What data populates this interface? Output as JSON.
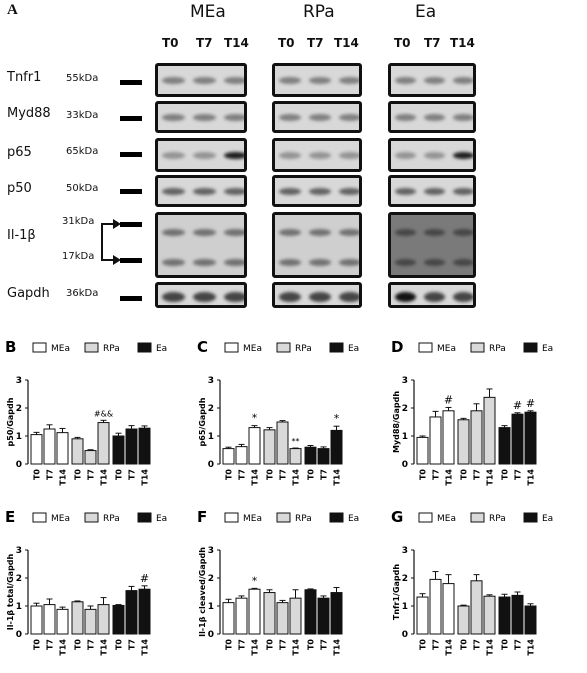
{
  "figure_label": "A",
  "blot": {
    "groups": [
      {
        "name": "MEa",
        "timepoints": [
          "T0",
          "T7",
          "T14"
        ]
      },
      {
        "name": "RPa",
        "timepoints": [
          "T0",
          "T7",
          "T14"
        ]
      },
      {
        "name": "Ea",
        "timepoints": [
          "T0",
          "T7",
          "T14"
        ]
      }
    ],
    "proteins": [
      {
        "name": "Tnfr1",
        "kda": "55kDa"
      },
      {
        "name": "Myd88",
        "kda": "33kDa"
      },
      {
        "name": "p65",
        "kda": "65kDa"
      },
      {
        "name": "p50",
        "kda": "50kDa"
      },
      {
        "name": "Il-1β",
        "kda_top": "31kDa",
        "kda_bottom": "17kDa"
      },
      {
        "name": "Gapdh",
        "kda": "36kDa"
      }
    ]
  },
  "colors": {
    "MEa": "#ffffff",
    "RPa": "#d9d9d9",
    "Ea": "#111111"
  },
  "chart_data": [
    {
      "letter": "B",
      "type": "bar",
      "ylabel": "p50/Gapdh",
      "ylim": [
        0,
        3
      ],
      "yticks": [
        "0",
        "1",
        "2",
        "3"
      ],
      "legend": [
        "MEa",
        "RPa",
        "Ea"
      ],
      "categories": [
        "T0",
        "T7",
        "T14"
      ],
      "series": [
        {
          "name": "MEa",
          "values": [
            1.05,
            1.25,
            1.12
          ],
          "err": [
            0.08,
            0.15,
            0.15
          ]
        },
        {
          "name": "RPa",
          "values": [
            0.9,
            0.48,
            1.48
          ],
          "err": [
            0.05,
            0.03,
            0.08
          ]
        },
        {
          "name": "Ea",
          "values": [
            1.0,
            1.25,
            1.28
          ],
          "err": [
            0.1,
            0.12,
            0.08
          ]
        }
      ],
      "annotations": [
        {
          "series": 1,
          "index": 2,
          "text": "#&&"
        }
      ]
    },
    {
      "letter": "C",
      "type": "bar",
      "ylabel": "p65/Gapdh",
      "ylim": [
        0,
        3
      ],
      "yticks": [
        "0",
        "1",
        "2",
        "3"
      ],
      "legend": [
        "MEa",
        "RPa",
        "Ea"
      ],
      "categories": [
        "T0",
        "T7",
        "T14"
      ],
      "series": [
        {
          "name": "MEa",
          "values": [
            0.55,
            0.62,
            1.3
          ],
          "err": [
            0.05,
            0.08,
            0.07
          ]
        },
        {
          "name": "RPa",
          "values": [
            1.22,
            1.5,
            0.55
          ],
          "err": [
            0.08,
            0.05,
            0.02
          ]
        },
        {
          "name": "Ea",
          "values": [
            0.6,
            0.55,
            1.2
          ],
          "err": [
            0.06,
            0.06,
            0.15
          ]
        }
      ],
      "annotations": [
        {
          "series": 0,
          "index": 2,
          "text": "*"
        },
        {
          "series": 1,
          "index": 2,
          "text": "**"
        },
        {
          "series": 2,
          "index": 2,
          "text": "*"
        }
      ]
    },
    {
      "letter": "D",
      "type": "bar",
      "ylabel": "Myd88/Gapdh",
      "ylim": [
        0,
        3
      ],
      "yticks": [
        "0",
        "1",
        "2",
        "3"
      ],
      "legend": [
        "MEa",
        "RPa",
        "Ea"
      ],
      "categories": [
        "T0",
        "T7",
        "T14"
      ],
      "series": [
        {
          "name": "MEa",
          "values": [
            0.95,
            1.68,
            1.9
          ],
          "err": [
            0.05,
            0.2,
            0.12
          ]
        },
        {
          "name": "RPa",
          "values": [
            1.58,
            1.9,
            2.38
          ],
          "err": [
            0.05,
            0.25,
            0.3
          ]
        },
        {
          "name": "Ea",
          "values": [
            1.3,
            1.78,
            1.85
          ],
          "err": [
            0.07,
            0.05,
            0.05
          ]
        }
      ],
      "annotations": [
        {
          "series": 0,
          "index": 2,
          "text": "#"
        },
        {
          "series": 2,
          "index": 1,
          "text": "#"
        },
        {
          "series": 2,
          "index": 2,
          "text": "#"
        }
      ]
    },
    {
      "letter": "E",
      "type": "bar",
      "ylabel": "Il-1β total/Gapdh",
      "ylim": [
        0,
        3
      ],
      "yticks": [
        "0",
        "1",
        "2",
        "3"
      ],
      "legend": [
        "MEa",
        "RPa",
        "Ea"
      ],
      "categories": [
        "T0",
        "T7",
        "T14"
      ],
      "series": [
        {
          "name": "MEa",
          "values": [
            1.0,
            1.05,
            0.88
          ],
          "err": [
            0.1,
            0.2,
            0.08
          ]
        },
        {
          "name": "RPa",
          "values": [
            1.15,
            0.88,
            1.05
          ],
          "err": [
            0.03,
            0.12,
            0.25
          ]
        },
        {
          "name": "Ea",
          "values": [
            1.02,
            1.55,
            1.6
          ],
          "err": [
            0.03,
            0.15,
            0.12
          ]
        }
      ],
      "annotations": [
        {
          "series": 2,
          "index": 2,
          "text": "#"
        }
      ]
    },
    {
      "letter": "F",
      "type": "bar",
      "ylabel": "Il-1β cleaved/Gapdh",
      "ylim": [
        0,
        3
      ],
      "yticks": [
        "0",
        "1",
        "2",
        "3"
      ],
      "legend": [
        "MEa",
        "RPa",
        "Ea"
      ],
      "categories": [
        "T0",
        "T7",
        "T14"
      ],
      "series": [
        {
          "name": "MEa",
          "values": [
            1.12,
            1.28,
            1.6
          ],
          "err": [
            0.12,
            0.08,
            0.03
          ]
        },
        {
          "name": "RPa",
          "values": [
            1.48,
            1.12,
            1.28
          ],
          "err": [
            0.1,
            0.08,
            0.3
          ]
        },
        {
          "name": "Ea",
          "values": [
            1.58,
            1.28,
            1.48
          ],
          "err": [
            0.03,
            0.08,
            0.18
          ]
        }
      ],
      "annotations": [
        {
          "series": 0,
          "index": 2,
          "text": "*"
        }
      ]
    },
    {
      "letter": "G",
      "type": "bar",
      "ylabel": "Tnfr1/Gapdh",
      "ylim": [
        0,
        3
      ],
      "yticks": [
        "0",
        "1",
        "2",
        "3"
      ],
      "legend": [
        "MEa",
        "RPa",
        "Ea"
      ],
      "categories": [
        "T0",
        "T7",
        "T14"
      ],
      "series": [
        {
          "name": "MEa",
          "values": [
            1.32,
            1.95,
            1.8
          ],
          "err": [
            0.12,
            0.28,
            0.32
          ]
        },
        {
          "name": "RPa",
          "values": [
            1.0,
            1.9,
            1.35
          ],
          "err": [
            0.03,
            0.22,
            0.05
          ]
        },
        {
          "name": "Ea",
          "values": [
            1.32,
            1.38,
            1.0
          ],
          "err": [
            0.1,
            0.12,
            0.08
          ]
        }
      ],
      "annotations": []
    }
  ]
}
